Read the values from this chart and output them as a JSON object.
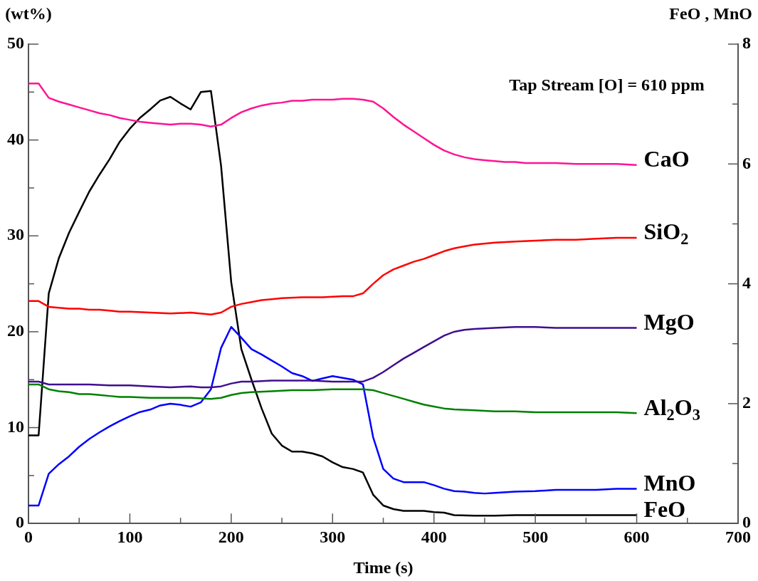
{
  "chart_data": {
    "type": "line",
    "xlabel": "Time (s)",
    "ylabel": "(wt%)",
    "y2label": "FeO , MnO",
    "annotations": [
      "Tap Stream [O] = 610 ppm"
    ],
    "xlim": [
      0,
      700
    ],
    "xticks": [
      0,
      {
        "value": 50,
        "label": null
      },
      100,
      {
        "value": 150,
        "label": null
      },
      200,
      {
        "value": 250,
        "label": null
      },
      300,
      {
        "value": 350,
        "label": null
      },
      400,
      {
        "value": 450,
        "label": null
      },
      500,
      {
        "value": 550,
        "label": null
      },
      600,
      {
        "value": 650,
        "label": null
      },
      700
    ],
    "ylim": [
      0,
      50
    ],
    "yticks": [
      0,
      {
        "value": 5,
        "label": null
      },
      10,
      {
        "value": 15,
        "label": null
      },
      20,
      {
        "value": 25,
        "label": null
      },
      30,
      {
        "value": 35,
        "label": null
      },
      40,
      {
        "value": 45,
        "label": null
      },
      50
    ],
    "y2lim": [
      0,
      8
    ],
    "y2ticks": [
      0,
      {
        "value": 1,
        "label": null
      },
      2,
      {
        "value": 3,
        "label": null
      },
      4,
      {
        "value": 5,
        "label": null
      },
      6,
      {
        "value": 7,
        "label": null
      },
      8
    ],
    "grid": false,
    "legend": false,
    "marker": "none",
    "line_style": "solid",
    "series": [
      {
        "name": "CaO",
        "color": "#ff1493",
        "x": [
          0,
          10,
          20,
          30,
          40,
          50,
          60,
          70,
          80,
          90,
          100,
          110,
          120,
          130,
          140,
          150,
          160,
          170,
          180,
          190,
          200,
          210,
          220,
          230,
          240,
          250,
          260,
          270,
          280,
          290,
          300,
          310,
          320,
          330,
          340,
          350,
          360,
          370,
          380,
          390,
          400,
          410,
          420,
          430,
          440,
          450,
          460,
          470,
          480,
          490,
          500,
          520,
          540,
          560,
          580,
          600
        ],
        "values": [
          45.9,
          45.9,
          44.4,
          44.0,
          43.7,
          43.4,
          43.1,
          42.8,
          42.6,
          42.3,
          42.1,
          41.9,
          41.8,
          41.7,
          41.6,
          41.7,
          41.7,
          41.6,
          41.4,
          41.6,
          42.3,
          42.9,
          43.3,
          43.6,
          43.8,
          43.9,
          44.1,
          44.1,
          44.2,
          44.2,
          44.2,
          44.3,
          44.3,
          44.2,
          44.0,
          43.3,
          42.4,
          41.6,
          40.9,
          40.2,
          39.5,
          38.9,
          38.5,
          38.2,
          38.0,
          37.9,
          37.8,
          37.7,
          37.7,
          37.6,
          37.6,
          37.6,
          37.5,
          37.5,
          37.5,
          37.4
        ]
      },
      {
        "name": "SiO$_{2}$",
        "color": "#ff0000",
        "x": [
          0,
          10,
          20,
          30,
          40,
          50,
          60,
          70,
          80,
          90,
          100,
          120,
          140,
          160,
          180,
          190,
          200,
          210,
          220,
          230,
          240,
          250,
          270,
          290,
          310,
          320,
          330,
          340,
          350,
          360,
          370,
          380,
          390,
          400,
          410,
          420,
          430,
          440,
          460,
          480,
          500,
          520,
          540,
          560,
          580,
          600
        ],
        "values": [
          23.2,
          23.2,
          22.6,
          22.5,
          22.4,
          22.4,
          22.3,
          22.3,
          22.2,
          22.1,
          22.1,
          22.0,
          21.9,
          22.0,
          21.8,
          22.0,
          22.6,
          22.9,
          23.1,
          23.3,
          23.4,
          23.5,
          23.6,
          23.6,
          23.7,
          23.7,
          24.0,
          25.0,
          25.9,
          26.5,
          26.9,
          27.3,
          27.6,
          28.0,
          28.4,
          28.7,
          28.9,
          29.1,
          29.3,
          29.4,
          29.5,
          29.6,
          29.6,
          29.7,
          29.8,
          29.8
        ]
      },
      {
        "name": "MgO",
        "color": "#3f0f8f",
        "x": [
          0,
          10,
          20,
          40,
          60,
          80,
          100,
          120,
          140,
          160,
          170,
          180,
          190,
          200,
          210,
          220,
          240,
          260,
          280,
          300,
          320,
          330,
          340,
          350,
          360,
          370,
          380,
          390,
          400,
          410,
          420,
          430,
          440,
          460,
          480,
          500,
          520,
          560,
          580,
          600
        ],
        "values": [
          14.8,
          14.8,
          14.5,
          14.5,
          14.5,
          14.4,
          14.4,
          14.3,
          14.2,
          14.3,
          14.2,
          14.2,
          14.3,
          14.6,
          14.8,
          14.8,
          14.9,
          14.9,
          14.9,
          14.8,
          14.8,
          14.8,
          15.2,
          15.8,
          16.5,
          17.2,
          17.8,
          18.4,
          19.0,
          19.6,
          20.0,
          20.2,
          20.3,
          20.4,
          20.5,
          20.5,
          20.4,
          20.4,
          20.4,
          20.4
        ]
      },
      {
        "name": "Al$_{2}$O$_{3}$",
        "color": "#008000",
        "x": [
          0,
          10,
          20,
          30,
          40,
          50,
          60,
          70,
          80,
          90,
          100,
          120,
          140,
          160,
          180,
          190,
          200,
          210,
          220,
          240,
          260,
          280,
          300,
          320,
          330,
          340,
          350,
          360,
          370,
          380,
          390,
          400,
          410,
          420,
          440,
          460,
          480,
          500,
          540,
          560,
          580,
          600
        ],
        "values": [
          14.5,
          14.5,
          14.0,
          13.8,
          13.7,
          13.5,
          13.5,
          13.4,
          13.3,
          13.2,
          13.2,
          13.1,
          13.1,
          13.1,
          13.0,
          13.1,
          13.4,
          13.6,
          13.7,
          13.8,
          13.9,
          13.9,
          14.0,
          14.0,
          14.0,
          13.9,
          13.6,
          13.3,
          13.0,
          12.7,
          12.4,
          12.2,
          12.0,
          11.9,
          11.8,
          11.7,
          11.7,
          11.6,
          11.6,
          11.6,
          11.6,
          11.5
        ]
      },
      {
        "name": "MnO",
        "color": "#0000ff",
        "axis": "y2",
        "x": [
          0,
          10,
          20,
          30,
          40,
          50,
          60,
          70,
          80,
          90,
          100,
          110,
          120,
          130,
          140,
          150,
          160,
          170,
          180,
          190,
          200,
          210,
          220,
          230,
          240,
          250,
          260,
          270,
          280,
          290,
          300,
          310,
          320,
          330,
          340,
          350,
          360,
          370,
          380,
          390,
          400,
          410,
          420,
          430,
          440,
          450,
          460,
          480,
          500,
          520,
          540,
          560,
          580,
          600
        ],
        "values": [
          0.3,
          0.3,
          0.83,
          0.99,
          1.12,
          1.28,
          1.41,
          1.52,
          1.62,
          1.71,
          1.79,
          1.86,
          1.9,
          1.97,
          2.0,
          1.98,
          1.95,
          2.02,
          2.24,
          2.93,
          3.28,
          3.1,
          2.91,
          2.82,
          2.72,
          2.62,
          2.51,
          2.46,
          2.38,
          2.42,
          2.46,
          2.43,
          2.4,
          2.32,
          1.44,
          0.91,
          0.75,
          0.69,
          0.69,
          0.69,
          0.64,
          0.58,
          0.54,
          0.53,
          0.51,
          0.5,
          0.51,
          0.53,
          0.54,
          0.56,
          0.56,
          0.56,
          0.58,
          0.58
        ]
      },
      {
        "name": "FeO",
        "color": "#000000",
        "axis": "y2",
        "x": [
          0,
          10,
          20,
          30,
          40,
          50,
          60,
          70,
          80,
          90,
          100,
          110,
          120,
          130,
          140,
          150,
          160,
          170,
          180,
          190,
          200,
          210,
          220,
          230,
          240,
          250,
          260,
          270,
          280,
          290,
          300,
          310,
          320,
          330,
          340,
          350,
          360,
          370,
          380,
          390,
          400,
          410,
          420,
          440,
          460,
          480,
          600
        ],
        "values": [
          1.47,
          1.47,
          3.84,
          4.43,
          4.85,
          5.2,
          5.54,
          5.82,
          6.08,
          6.37,
          6.59,
          6.77,
          6.91,
          7.06,
          7.12,
          7.01,
          6.91,
          7.2,
          7.22,
          5.97,
          4.03,
          2.91,
          2.4,
          1.92,
          1.5,
          1.3,
          1.2,
          1.2,
          1.17,
          1.12,
          1.02,
          0.94,
          0.91,
          0.85,
          0.48,
          0.3,
          0.24,
          0.21,
          0.21,
          0.21,
          0.19,
          0.18,
          0.14,
          0.13,
          0.13,
          0.14,
          0.14
        ]
      }
    ]
  }
}
